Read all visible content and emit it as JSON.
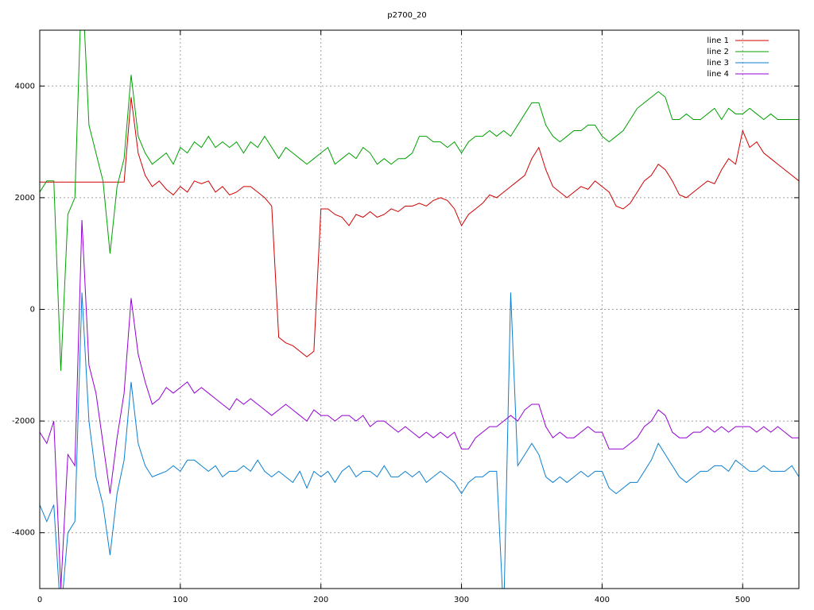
{
  "chart_data": {
    "type": "line",
    "title": "p2700_20",
    "x": [
      0,
      5,
      10,
      15,
      20,
      25,
      30,
      35,
      40,
      45,
      50,
      55,
      60,
      65,
      70,
      75,
      80,
      85,
      90,
      95,
      100,
      105,
      110,
      115,
      120,
      125,
      130,
      135,
      140,
      145,
      150,
      155,
      160,
      165,
      170,
      175,
      180,
      185,
      190,
      195,
      200,
      205,
      210,
      215,
      220,
      225,
      230,
      235,
      240,
      245,
      250,
      255,
      260,
      265,
      270,
      275,
      280,
      285,
      290,
      295,
      300,
      305,
      310,
      315,
      320,
      325,
      330,
      335,
      340,
      345,
      350,
      355,
      360,
      365,
      370,
      375,
      380,
      385,
      390,
      395,
      400,
      405,
      410,
      415,
      420,
      425,
      430,
      435,
      440,
      445,
      450,
      455,
      460,
      465,
      470,
      475,
      480,
      485,
      490,
      495,
      500,
      505,
      510,
      515,
      520,
      525,
      530,
      535,
      540
    ],
    "series": [
      {
        "name": "line 1",
        "color": "#d00000",
        "values": [
          2280,
          2280,
          2280,
          2280,
          2280,
          2280,
          2280,
          2280,
          2280,
          2280,
          2280,
          2280,
          2280,
          3800,
          2800,
          2400,
          2200,
          2300,
          2150,
          2050,
          2200,
          2100,
          2300,
          2250,
          2300,
          2100,
          2200,
          2050,
          2100,
          2200,
          2200,
          2100,
          2000,
          1850,
          -500,
          -600,
          -650,
          -750,
          -850,
          -750,
          1800,
          1800,
          1700,
          1650,
          1500,
          1700,
          1650,
          1750,
          1650,
          1700,
          1800,
          1750,
          1850,
          1850,
          1900,
          1850,
          1950,
          2000,
          1950,
          1800,
          1500,
          1700,
          1800,
          1900,
          2050,
          2000,
          2100,
          2200,
          2300,
          2400,
          2700,
          2900,
          2500,
          2200,
          2100,
          2000,
          2100,
          2200,
          2150,
          2300,
          2200,
          2100,
          1850,
          1800,
          1900,
          2100,
          2300,
          2400,
          2600,
          2500,
          2300,
          2050,
          2000,
          2100,
          2200,
          2300,
          2250,
          2500,
          2700,
          2600,
          3200,
          2900,
          3000,
          2800,
          2700,
          2600,
          2500,
          2400,
          2300
        ]
      },
      {
        "name": "line 2",
        "color": "#00a000",
        "values": [
          2100,
          2300,
          2300,
          -1100,
          1700,
          2000,
          6000,
          3300,
          2800,
          2300,
          1000,
          2200,
          2700,
          4200,
          3100,
          2800,
          2600,
          2700,
          2800,
          2600,
          2900,
          2800,
          3000,
          2900,
          3100,
          2900,
          3000,
          2900,
          3000,
          2800,
          3000,
          2900,
          3100,
          2900,
          2700,
          2900,
          2800,
          2700,
          2600,
          2700,
          2800,
          2900,
          2600,
          2700,
          2800,
          2700,
          2900,
          2800,
          2600,
          2700,
          2600,
          2700,
          2700,
          2800,
          3100,
          3100,
          3000,
          3000,
          2900,
          3000,
          2800,
          3000,
          3100,
          3100,
          3200,
          3100,
          3200,
          3100,
          3300,
          3500,
          3700,
          3700,
          3300,
          3100,
          3000,
          3100,
          3200,
          3200,
          3300,
          3300,
          3100,
          3000,
          3100,
          3200,
          3400,
          3600,
          3700,
          3800,
          3900,
          3800,
          3400,
          3400,
          3500,
          3400,
          3400,
          3500,
          3600,
          3400,
          3600,
          3500,
          3500,
          3600,
          3500,
          3400,
          3500,
          3400,
          3400,
          3400,
          3400
        ]
      },
      {
        "name": "line 3",
        "color": "#0a7fd0",
        "values": [
          -3500,
          -3800,
          -3500,
          -5500,
          -4000,
          -3800,
          300,
          -2000,
          -3000,
          -3500,
          -4400,
          -3300,
          -2700,
          -1300,
          -2400,
          -2800,
          -3000,
          -2950,
          -2900,
          -2800,
          -2900,
          -2700,
          -2700,
          -2800,
          -2900,
          -2800,
          -3000,
          -2900,
          -2900,
          -2800,
          -2900,
          -2700,
          -2900,
          -3000,
          -2900,
          -3000,
          -3100,
          -2900,
          -3200,
          -2900,
          -3000,
          -2900,
          -3100,
          -2900,
          -2800,
          -3000,
          -2900,
          -2900,
          -3000,
          -2800,
          -3000,
          -3000,
          -2900,
          -3000,
          -2900,
          -3100,
          -3000,
          -2900,
          -3000,
          -3100,
          -3300,
          -3100,
          -3000,
          -3000,
          -2900,
          -2900,
          -5500,
          300,
          -2800,
          -2600,
          -2400,
          -2600,
          -3000,
          -3100,
          -3000,
          -3100,
          -3000,
          -2900,
          -3000,
          -2900,
          -2900,
          -3200,
          -3300,
          -3200,
          -3100,
          -3100,
          -2900,
          -2700,
          -2400,
          -2600,
          -2800,
          -3000,
          -3100,
          -3000,
          -2900,
          -2900,
          -2800,
          -2800,
          -2900,
          -2700,
          -2800,
          -2900,
          -2900,
          -2800,
          -2900,
          -2900,
          -2900,
          -2800,
          -3000
        ]
      },
      {
        "name": "line 4",
        "color": "#9400d3",
        "values": [
          -2200,
          -2400,
          -2000,
          -5000,
          -2600,
          -2800,
          1600,
          -1000,
          -1500,
          -2400,
          -3300,
          -2300,
          -1500,
          200,
          -800,
          -1300,
          -1700,
          -1600,
          -1400,
          -1500,
          -1400,
          -1300,
          -1500,
          -1400,
          -1500,
          -1600,
          -1700,
          -1800,
          -1600,
          -1700,
          -1600,
          -1700,
          -1800,
          -1900,
          -1800,
          -1700,
          -1800,
          -1900,
          -2000,
          -1800,
          -1900,
          -1900,
          -2000,
          -1900,
          -1900,
          -2000,
          -1900,
          -2100,
          -2000,
          -2000,
          -2100,
          -2200,
          -2100,
          -2200,
          -2300,
          -2200,
          -2300,
          -2200,
          -2300,
          -2200,
          -2500,
          -2500,
          -2300,
          -2200,
          -2100,
          -2100,
          -2000,
          -1900,
          -2000,
          -1800,
          -1700,
          -1700,
          -2100,
          -2300,
          -2200,
          -2300,
          -2300,
          -2200,
          -2100,
          -2200,
          -2200,
          -2500,
          -2500,
          -2500,
          -2400,
          -2300,
          -2100,
          -2000,
          -1800,
          -1900,
          -2200,
          -2300,
          -2300,
          -2200,
          -2200,
          -2100,
          -2200,
          -2100,
          -2200,
          -2100,
          -2100,
          -2100,
          -2200,
          -2100,
          -2200,
          -2100,
          -2200,
          -2300,
          -2300
        ]
      }
    ],
    "xlim": [
      0,
      540
    ],
    "xticks": [
      0,
      100,
      200,
      300,
      400,
      500
    ],
    "ylim": [
      -5000,
      5000
    ],
    "yticks": [
      -4000,
      -2000,
      0,
      2000,
      4000
    ],
    "grid": true,
    "legend": "top-right"
  }
}
